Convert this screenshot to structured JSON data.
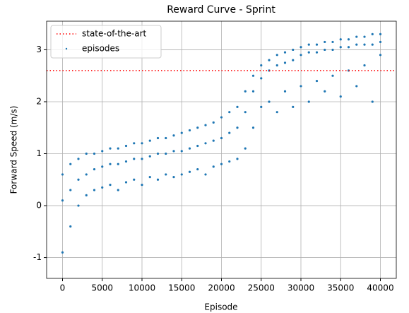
{
  "chart_data": {
    "type": "scatter",
    "title": "Reward Curve - Sprint",
    "xlabel": "Episode",
    "ylabel": "Forward Speed (m/s)",
    "xlim": [
      -2000,
      42000
    ],
    "ylim": [
      -1.4,
      3.55
    ],
    "xticks": [
      0,
      5000,
      10000,
      15000,
      20000,
      25000,
      30000,
      35000,
      40000
    ],
    "yticks": [
      -1,
      0,
      1,
      2,
      3
    ],
    "grid": true,
    "legend": "upper left",
    "reference_lines": [
      {
        "name": "state-of-the-art",
        "value": 2.6,
        "color": "#ff0000"
      }
    ],
    "series": [
      {
        "name": "episodes",
        "color": "#1f77b4",
        "x": [
          0,
          0,
          0,
          1000,
          1000,
          1000,
          2000,
          2000,
          2000,
          3000,
          3000,
          3000,
          4000,
          4000,
          4000,
          5000,
          5000,
          5000,
          6000,
          6000,
          6000,
          7000,
          7000,
          7000,
          8000,
          8000,
          8000,
          9000,
          9000,
          9000,
          10000,
          10000,
          10000,
          11000,
          11000,
          11000,
          12000,
          12000,
          12000,
          13000,
          13000,
          13000,
          14000,
          14000,
          14000,
          15000,
          15000,
          15000,
          16000,
          16000,
          16000,
          17000,
          17000,
          17000,
          18000,
          18000,
          18000,
          19000,
          19000,
          19000,
          20000,
          20000,
          20000,
          21000,
          21000,
          21000,
          22000,
          22000,
          22000,
          23000,
          23000,
          23000,
          24000,
          24000,
          24000,
          25000,
          25000,
          25000,
          26000,
          26000,
          26000,
          27000,
          27000,
          27000,
          28000,
          28000,
          28000,
          29000,
          29000,
          29000,
          30000,
          30000,
          30000,
          31000,
          31000,
          31000,
          32000,
          32000,
          32000,
          33000,
          33000,
          33000,
          34000,
          34000,
          34000,
          35000,
          35000,
          35000,
          36000,
          36000,
          36000,
          37000,
          37000,
          37000,
          38000,
          38000,
          38000,
          39000,
          39000,
          39000,
          40000,
          40000,
          40000
        ],
        "values": [
          0.6,
          0.1,
          -0.9,
          0.8,
          0.3,
          -0.4,
          0.9,
          0.5,
          0.0,
          1.0,
          0.6,
          0.2,
          1.0,
          0.7,
          0.3,
          1.05,
          0.75,
          0.35,
          1.1,
          0.8,
          0.4,
          1.1,
          0.8,
          0.3,
          1.15,
          0.85,
          0.45,
          1.2,
          0.9,
          0.5,
          1.2,
          0.9,
          0.4,
          1.25,
          0.95,
          0.55,
          1.3,
          1.0,
          0.5,
          1.3,
          1.0,
          0.6,
          1.35,
          1.05,
          0.55,
          1.4,
          1.05,
          0.6,
          1.45,
          1.1,
          0.65,
          1.5,
          1.15,
          0.7,
          1.55,
          1.2,
          0.6,
          1.6,
          1.25,
          0.75,
          1.7,
          1.3,
          0.8,
          1.8,
          1.4,
          0.85,
          1.9,
          1.5,
          0.9,
          2.2,
          1.8,
          1.1,
          2.5,
          2.2,
          1.5,
          2.7,
          2.45,
          1.9,
          2.8,
          2.6,
          2.0,
          2.9,
          2.7,
          1.8,
          2.95,
          2.75,
          2.2,
          3.0,
          2.8,
          1.9,
          3.05,
          2.9,
          2.3,
          3.1,
          2.95,
          2.0,
          3.1,
          2.95,
          2.4,
          3.15,
          3.0,
          2.2,
          3.15,
          3.0,
          2.5,
          3.2,
          3.05,
          2.1,
          3.2,
          3.05,
          2.6,
          3.25,
          3.1,
          2.3,
          3.25,
          3.1,
          2.7,
          3.3,
          3.1,
          2.0,
          3.3,
          3.15,
          2.9
        ]
      }
    ]
  }
}
